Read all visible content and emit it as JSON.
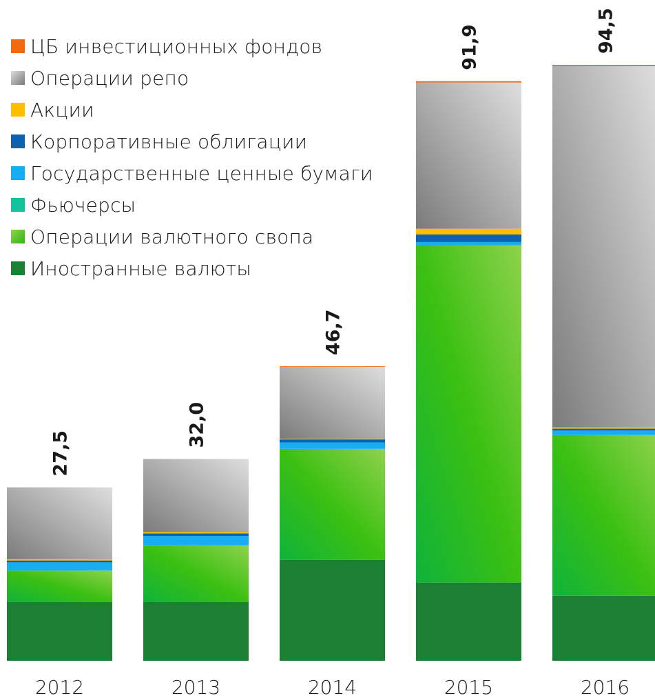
{
  "chart_data": {
    "type": "bar",
    "stacked": true,
    "categories": [
      "2012",
      "2013",
      "2014",
      "2015",
      "2016"
    ],
    "totals": [
      27.5,
      32.0,
      46.7,
      91.9,
      94.5
    ],
    "total_labels": [
      "27,5",
      "32,0",
      "46,7",
      "91,9",
      "94,5"
    ],
    "ylim": [
      0,
      94.5
    ],
    "grid": false,
    "legend_position": "top-left",
    "series": [
      {
        "name": "Иностранные валюты",
        "color": "#1b7f34",
        "values": [
          9.3,
          9.3,
          16.0,
          12.4,
          10.3
        ]
      },
      {
        "name": "Операции валютного свопа",
        "color": "#4cbf1f",
        "values": [
          5.0,
          9.0,
          17.6,
          53.5,
          25.5
        ]
      },
      {
        "name": "Фьючерсы",
        "color": "#11c29a",
        "values": [
          0.0,
          0.0,
          0.0,
          0.0,
          0.0
        ]
      },
      {
        "name": "Государственные ценные бумаги",
        "color": "#16aef0",
        "values": [
          1.3,
          1.5,
          1.0,
          0.5,
          0.7
        ]
      },
      {
        "name": "Корпоративные облигации",
        "color": "#0b62b0",
        "values": [
          0.3,
          0.4,
          0.5,
          1.2,
          0.3
        ]
      },
      {
        "name": "Акции",
        "color": "#ffbf00",
        "values": [
          0.2,
          0.2,
          0.1,
          0.9,
          0.2
        ]
      },
      {
        "name": "Операции репо",
        "color": "#a8a8a8",
        "values": [
          11.4,
          11.6,
          11.4,
          23.2,
          57.3
        ]
      },
      {
        "name": "ЦБ инвестиционных фондов",
        "color": "#f26a0c",
        "values": [
          0.0,
          0.0,
          0.1,
          0.2,
          0.2
        ]
      }
    ]
  }
}
